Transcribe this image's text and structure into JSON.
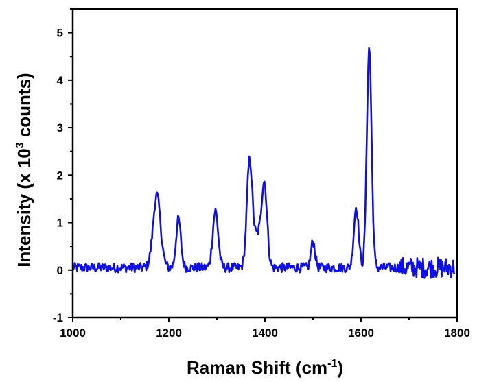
{
  "chart_data": {
    "type": "line",
    "xlabel": "Raman Shift (cm",
    "xlabel_sup": "-1",
    "xlabel_end": ")",
    "ylabel_pre": "Intensity (x 10",
    "ylabel_sup": "3",
    "ylabel_post": " counts)",
    "xlim": [
      1000,
      1800
    ],
    "ylim": [
      -1,
      5.5
    ],
    "xticks": [
      1000,
      1200,
      1400,
      1600,
      1800
    ],
    "xtick_labels": [
      "1000",
      "1200",
      "1400",
      "1600",
      "1800"
    ],
    "yticks": [
      -1,
      0,
      1,
      2,
      3,
      4,
      5
    ],
    "ytick_labels": [
      "-1",
      "0",
      "1",
      "2",
      "3",
      "4",
      "5"
    ],
    "grid": false,
    "line_color": "#1010e0",
    "peaks": [
      {
        "x": 1175,
        "y": 1.52,
        "w": 11
      },
      {
        "x": 1220,
        "y": 1.02,
        "w": 7
      },
      {
        "x": 1297,
        "y": 1.2,
        "w": 8
      },
      {
        "x": 1368,
        "y": 2.2,
        "w": 8
      },
      {
        "x": 1399,
        "y": 1.65,
        "w": 8
      },
      {
        "x": 1385,
        "y": 0.65,
        "w": 12
      },
      {
        "x": 1500,
        "y": 0.55,
        "w": 6
      },
      {
        "x": 1590,
        "y": 1.28,
        "w": 7
      },
      {
        "x": 1617,
        "y": 4.62,
        "w": 7
      }
    ],
    "baseline": 0.05,
    "noise": 0.1
  }
}
